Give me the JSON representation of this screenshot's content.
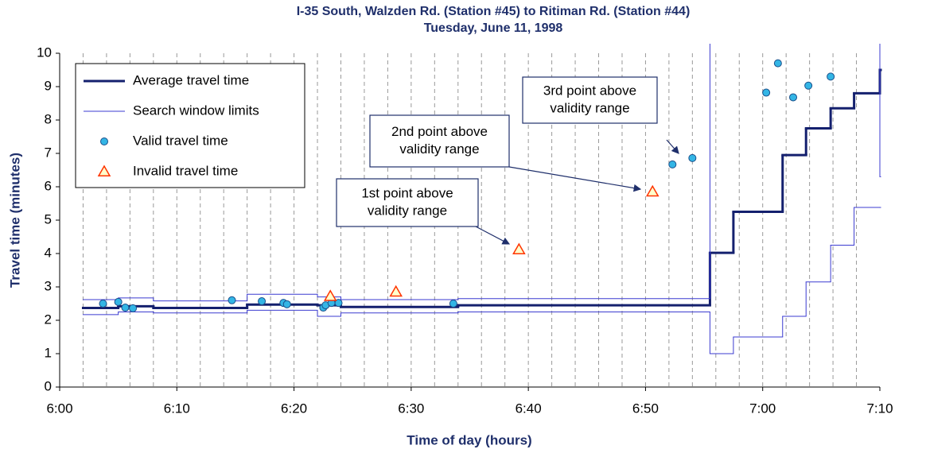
{
  "chart_data": {
    "type": "line",
    "title": "I-35 South, Walzden Rd. (Station #45) to Ritiman Rd. (Station #44)",
    "subtitle": "Tuesday, June 11, 1998",
    "x_label": "Time of day (hours)",
    "y_label": "Travel time (minutes)",
    "xlim": [
      0,
      70
    ],
    "xticks": [
      {
        "value": 0,
        "label": "6:00"
      },
      {
        "value": 10,
        "label": "6:10"
      },
      {
        "value": 20,
        "label": "6:20"
      },
      {
        "value": 30,
        "label": "6:30"
      },
      {
        "value": 40,
        "label": "6:40"
      },
      {
        "value": 50,
        "label": "6:50"
      },
      {
        "value": 60,
        "label": "7:00"
      },
      {
        "value": 70,
        "label": "7:10"
      }
    ],
    "x_gridlines": [
      2,
      4,
      6,
      8,
      10,
      12,
      14,
      16,
      18,
      20,
      22,
      24,
      26,
      28,
      30,
      32,
      34,
      36,
      38,
      40,
      42,
      44,
      46,
      48,
      50,
      52,
      54,
      56,
      58,
      60,
      62,
      64,
      66,
      68
    ],
    "ylim": [
      0,
      10
    ],
    "yticks": [
      0,
      1,
      2,
      3,
      4,
      5,
      6,
      7,
      8,
      9,
      10
    ],
    "legend": "upper left",
    "series": [
      {
        "name": "Average travel time",
        "type": "step",
        "color": "#14206e",
        "x": [
          2,
          5,
          8,
          16,
          22,
          24,
          34,
          55.5,
          57.5,
          61.7,
          63.7,
          65.8,
          67.8,
          70
        ],
        "values": [
          2.37,
          2.42,
          2.37,
          2.47,
          2.45,
          2.4,
          2.45,
          4.02,
          5.25,
          6.95,
          7.75,
          8.35,
          8.8,
          9.5
        ]
      },
      {
        "name": "Search window limits",
        "type": "step-band",
        "color": "#3b3bd0",
        "x": [
          2,
          5,
          8,
          16,
          22,
          24,
          34,
          55.5,
          57.5,
          61.7,
          63.7,
          65.8,
          67.8,
          70
        ],
        "upper": [
          2.62,
          2.67,
          2.58,
          2.78,
          2.7,
          2.62,
          2.65,
          12,
          12,
          12,
          12,
          12,
          12,
          6.3
        ],
        "lower": [
          2.17,
          2.25,
          2.22,
          2.3,
          2.12,
          2.22,
          2.25,
          1.0,
          1.5,
          2.12,
          3.15,
          4.25,
          5.38,
          5.38
        ]
      },
      {
        "name": "Valid travel time",
        "type": "scatter",
        "marker": "circle",
        "color": "#33b5e5",
        "x": [
          3.7,
          5.0,
          5.6,
          6.25,
          14.7,
          17.25,
          19.1,
          19.4,
          22.5,
          22.7,
          23.2,
          23.8,
          33.6,
          52.3,
          54.0,
          60.3,
          61.3,
          62.6,
          63.9,
          65.8
        ],
        "values": [
          2.5,
          2.55,
          2.38,
          2.36,
          2.6,
          2.57,
          2.52,
          2.48,
          2.38,
          2.45,
          2.52,
          2.52,
          2.5,
          6.67,
          6.86,
          8.82,
          9.7,
          8.68,
          9.03,
          9.3
        ]
      },
      {
        "name": "Invalid travel time",
        "type": "scatter",
        "marker": "triangle",
        "color": "#ff3300",
        "x": [
          23.1,
          28.7,
          39.2,
          50.6
        ],
        "values": [
          2.72,
          2.85,
          4.12,
          5.85
        ]
      }
    ],
    "annotations": [
      {
        "text": [
          "1st point above",
          "validity range"
        ]
      },
      {
        "text": [
          "2nd point above",
          "validity range"
        ]
      },
      {
        "text": [
          "3rd point above",
          "validity range"
        ]
      }
    ]
  }
}
